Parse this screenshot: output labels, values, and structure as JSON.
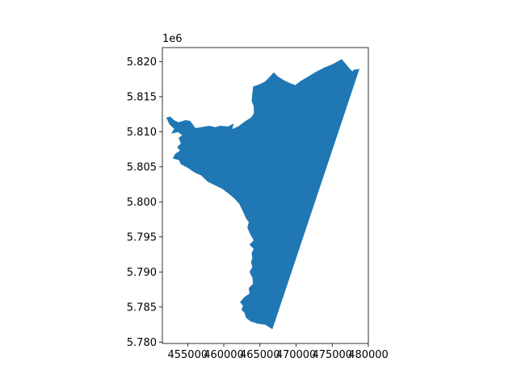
{
  "chart_data": {
    "type": "area",
    "description_kind": "geographic-polygon",
    "title": "",
    "xlabel": "",
    "ylabel": "",
    "y_offset_label": "1e6",
    "xlim": [
      451500,
      480000
    ],
    "ylim": [
      5779800,
      5822000
    ],
    "x_ticks": [
      {
        "value": 455000,
        "label": "455000"
      },
      {
        "value": 460000,
        "label": "460000"
      },
      {
        "value": 465000,
        "label": "465000"
      },
      {
        "value": 470000,
        "label": "470000"
      },
      {
        "value": 475000,
        "label": "475000"
      },
      {
        "value": 480000,
        "label": "480000"
      }
    ],
    "y_ticks": [
      {
        "value": 5780000,
        "label": "5.780"
      },
      {
        "value": 5785000,
        "label": "5.785"
      },
      {
        "value": 5790000,
        "label": "5.790"
      },
      {
        "value": 5795000,
        "label": "5.795"
      },
      {
        "value": 5800000,
        "label": "5.800"
      },
      {
        "value": 5805000,
        "label": "5.805"
      },
      {
        "value": 5810000,
        "label": "5.810"
      },
      {
        "value": 5815000,
        "label": "5.815"
      },
      {
        "value": 5820000,
        "label": "5.820"
      }
    ],
    "series": [
      {
        "color": "#1f77b4",
        "polygon": [
          [
            476300,
            5820300
          ],
          [
            477200,
            5819200
          ],
          [
            477800,
            5818500
          ],
          [
            478000,
            5818800
          ],
          [
            478700,
            5818900
          ],
          [
            466700,
            5781900
          ],
          [
            465800,
            5782500
          ],
          [
            464600,
            5782700
          ],
          [
            463700,
            5783000
          ],
          [
            463100,
            5783500
          ],
          [
            462900,
            5784200
          ],
          [
            462500,
            5784600
          ],
          [
            462700,
            5785200
          ],
          [
            462300,
            5785700
          ],
          [
            462900,
            5786400
          ],
          [
            463600,
            5786900
          ],
          [
            463500,
            5787700
          ],
          [
            464100,
            5788300
          ],
          [
            464000,
            5789200
          ],
          [
            463600,
            5790000
          ],
          [
            464000,
            5790700
          ],
          [
            463800,
            5791400
          ],
          [
            464000,
            5792000
          ],
          [
            463900,
            5792700
          ],
          [
            464200,
            5793300
          ],
          [
            463600,
            5793900
          ],
          [
            464200,
            5794500
          ],
          [
            463700,
            5795400
          ],
          [
            463300,
            5796300
          ],
          [
            463500,
            5797100
          ],
          [
            463100,
            5797700
          ],
          [
            462700,
            5798600
          ],
          [
            462200,
            5799700
          ],
          [
            461500,
            5800500
          ],
          [
            460700,
            5801200
          ],
          [
            459800,
            5801900
          ],
          [
            458800,
            5802400
          ],
          [
            457800,
            5802900
          ],
          [
            456900,
            5803800
          ],
          [
            456000,
            5804200
          ],
          [
            455000,
            5804900
          ],
          [
            454100,
            5805400
          ],
          [
            453800,
            5806000
          ],
          [
            453000,
            5806200
          ],
          [
            453300,
            5806800
          ],
          [
            454000,
            5807300
          ],
          [
            453600,
            5807800
          ],
          [
            454100,
            5808300
          ],
          [
            453800,
            5809100
          ],
          [
            454300,
            5809500
          ],
          [
            453700,
            5810000
          ],
          [
            452800,
            5809800
          ],
          [
            453200,
            5810400
          ],
          [
            452500,
            5811100
          ],
          [
            452100,
            5812000
          ],
          [
            452600,
            5812100
          ],
          [
            453100,
            5811600
          ],
          [
            453700,
            5811300
          ],
          [
            454700,
            5811600
          ],
          [
            455300,
            5811500
          ],
          [
            455700,
            5811000
          ],
          [
            456000,
            5810500
          ],
          [
            456300,
            5810500
          ],
          [
            457400,
            5810700
          ],
          [
            458000,
            5810800
          ],
          [
            458800,
            5810600
          ],
          [
            459500,
            5810800
          ],
          [
            460600,
            5810700
          ],
          [
            461300,
            5811100
          ],
          [
            461100,
            5810300
          ],
          [
            462000,
            5810700
          ],
          [
            462900,
            5811400
          ],
          [
            463800,
            5812000
          ],
          [
            464200,
            5812600
          ],
          [
            464200,
            5813600
          ],
          [
            463900,
            5814400
          ],
          [
            464000,
            5815400
          ],
          [
            464100,
            5816400
          ],
          [
            464900,
            5816700
          ],
          [
            465300,
            5816900
          ],
          [
            465700,
            5817100
          ],
          [
            466300,
            5817700
          ],
          [
            466900,
            5818400
          ],
          [
            467500,
            5817800
          ],
          [
            468300,
            5817300
          ],
          [
            469100,
            5816900
          ],
          [
            469900,
            5816600
          ],
          [
            470800,
            5817300
          ],
          [
            471800,
            5817900
          ],
          [
            472800,
            5818500
          ],
          [
            473900,
            5819100
          ],
          [
            475100,
            5819600
          ],
          [
            476300,
            5820300
          ]
        ]
      }
    ]
  }
}
